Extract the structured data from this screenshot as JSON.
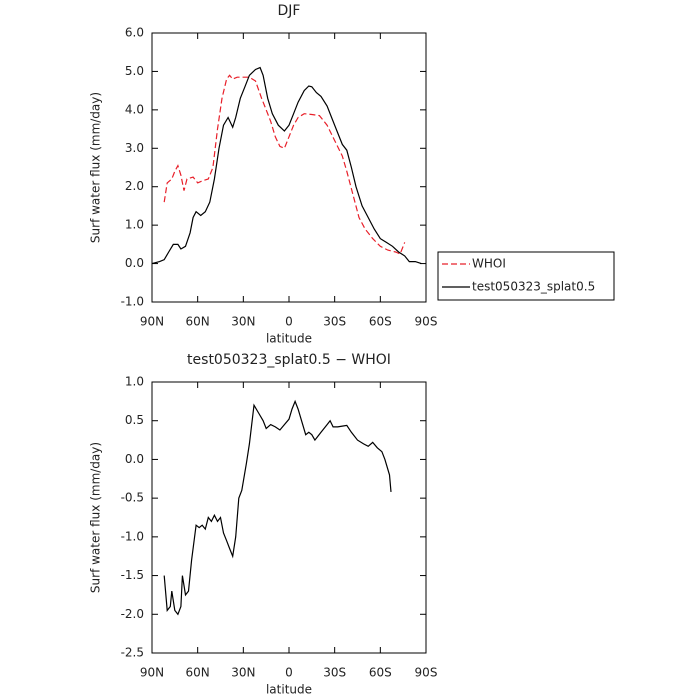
{
  "chart_data": [
    {
      "type": "line",
      "title": "DJF",
      "x_label": "latitude",
      "y_label": "Surf water flux (mm/day)",
      "xlim": [
        90,
        -90
      ],
      "xticks": [
        {
          "value": 90,
          "label": "90N"
        },
        {
          "value": 60,
          "label": "60N"
        },
        {
          "value": 30,
          "label": "30N"
        },
        0,
        {
          "value": -30,
          "label": "30S"
        },
        {
          "value": -60,
          "label": "60S"
        },
        {
          "value": -90,
          "label": "90S"
        }
      ],
      "ylim": [
        -1,
        6
      ],
      "yticks": [
        {
          "value": -1,
          "label": "-1.0"
        },
        {
          "value": 0,
          "label": "0.0"
        },
        {
          "value": 1,
          "label": "1.0"
        },
        {
          "value": 2,
          "label": "2.0"
        },
        {
          "value": 3,
          "label": "3.0"
        },
        {
          "value": 4,
          "label": "4.0"
        },
        {
          "value": 5,
          "label": "5.0"
        },
        {
          "value": 6,
          "label": "6.0"
        }
      ],
      "legend": "right",
      "series": [
        {
          "name": "WHOI",
          "color": "#e8202a",
          "dashed": true,
          "x": [
            82,
            80,
            77,
            75,
            73,
            71,
            69,
            67,
            63,
            60,
            57,
            53,
            50,
            47,
            44,
            41,
            39,
            37,
            34,
            30,
            26,
            22,
            18,
            15,
            12,
            9,
            6,
            3,
            0,
            -3,
            -6,
            -10,
            -15,
            -20,
            -25,
            -30,
            -35,
            -38,
            -42,
            -46,
            -50,
            -55,
            -60,
            -65,
            -70,
            -73,
            -76
          ],
          "values": [
            1.6,
            2.1,
            2.2,
            2.4,
            2.55,
            2.3,
            1.9,
            2.2,
            2.25,
            2.1,
            2.15,
            2.2,
            2.5,
            3.5,
            4.3,
            4.8,
            4.9,
            4.8,
            4.85,
            4.85,
            4.85,
            4.75,
            4.3,
            4.0,
            3.7,
            3.3,
            3.05,
            3.0,
            3.3,
            3.6,
            3.8,
            3.9,
            3.88,
            3.85,
            3.6,
            3.2,
            2.8,
            2.4,
            1.8,
            1.2,
            0.9,
            0.65,
            0.45,
            0.35,
            0.3,
            0.25,
            0.55
          ]
        },
        {
          "name": "test050323_splat0.5",
          "color": "#000000",
          "dashed": false,
          "x": [
            90,
            85,
            82,
            79,
            76,
            73,
            71,
            68,
            65,
            63,
            61,
            58,
            55,
            52,
            49,
            46,
            43,
            40,
            37,
            35,
            32,
            29,
            26,
            22,
            19,
            17,
            14,
            11,
            7,
            3,
            0,
            -3,
            -6,
            -10,
            -13,
            -15,
            -18,
            -21,
            -25,
            -28,
            -32,
            -35,
            -38,
            -41,
            -44,
            -48,
            -52,
            -56,
            -60,
            -64,
            -68,
            -72,
            -76,
            -79,
            -83,
            -87
          ],
          "values": [
            0.0,
            0.05,
            0.1,
            0.3,
            0.5,
            0.5,
            0.38,
            0.45,
            0.8,
            1.2,
            1.35,
            1.25,
            1.35,
            1.6,
            2.2,
            3.0,
            3.6,
            3.8,
            3.55,
            3.8,
            4.3,
            4.6,
            4.9,
            5.05,
            5.1,
            4.9,
            4.3,
            3.9,
            3.6,
            3.45,
            3.6,
            3.9,
            4.2,
            4.5,
            4.62,
            4.6,
            4.45,
            4.35,
            4.1,
            3.8,
            3.4,
            3.1,
            2.95,
            2.5,
            2.0,
            1.5,
            1.2,
            0.9,
            0.65,
            0.55,
            0.45,
            0.3,
            0.2,
            0.05,
            0.05,
            0.0
          ]
        }
      ]
    },
    {
      "type": "line",
      "title": "test050323_splat0.5 − WHOI",
      "x_label": "latitude",
      "y_label": "Surf water flux (mm/day)",
      "xlim": [
        90,
        -90
      ],
      "xticks": [
        {
          "value": 90,
          "label": "90N"
        },
        {
          "value": 60,
          "label": "60N"
        },
        {
          "value": 30,
          "label": "30N"
        },
        0,
        {
          "value": -30,
          "label": "30S"
        },
        {
          "value": -60,
          "label": "60S"
        },
        {
          "value": -90,
          "label": "90S"
        }
      ],
      "ylim": [
        -2.5,
        1
      ],
      "yticks": [
        {
          "value": -2.5,
          "label": "-2.5"
        },
        {
          "value": -2,
          "label": "-2.0"
        },
        {
          "value": -1.5,
          "label": "-1.5"
        },
        {
          "value": -1,
          "label": "-1.0"
        },
        {
          "value": -0.5,
          "label": "-0.5"
        },
        {
          "value": 0,
          "label": "0.0"
        },
        0.5,
        {
          "value": 1,
          "label": "1.0"
        }
      ],
      "series": [
        {
          "color": "#000000",
          "dashed": false,
          "x": [
            82,
            80,
            78,
            77,
            75,
            73,
            71,
            70,
            68,
            66,
            64,
            61,
            59,
            57,
            55,
            53,
            51,
            49,
            47,
            45,
            43,
            41,
            39,
            37,
            35,
            33,
            31,
            28,
            26,
            23,
            20,
            17,
            15,
            12,
            9,
            6,
            3,
            0,
            -2,
            -4,
            -6,
            -9,
            -11,
            -13,
            -15,
            -17,
            -19,
            -21,
            -23,
            -25,
            -27,
            -29,
            -32,
            -35,
            -38,
            -41,
            -45,
            -49,
            -52,
            -55,
            -58,
            -61,
            -63,
            -66,
            -67
          ],
          "values": [
            -1.5,
            -1.95,
            -1.9,
            -1.7,
            -1.95,
            -2.0,
            -1.9,
            -1.5,
            -1.75,
            -1.7,
            -1.3,
            -0.85,
            -0.88,
            -0.85,
            -0.9,
            -0.75,
            -0.8,
            -0.72,
            -0.8,
            -0.75,
            -0.95,
            -1.05,
            -1.15,
            -1.25,
            -1.0,
            -0.5,
            -0.4,
            -0.05,
            0.2,
            0.7,
            0.6,
            0.5,
            0.4,
            0.45,
            0.42,
            0.38,
            0.45,
            0.52,
            0.65,
            0.75,
            0.65,
            0.45,
            0.32,
            0.35,
            0.32,
            0.25,
            0.3,
            0.35,
            0.4,
            0.45,
            0.5,
            0.42,
            0.42,
            0.43,
            0.44,
            0.35,
            0.25,
            0.2,
            0.17,
            0.22,
            0.15,
            0.1,
            0.0,
            -0.2,
            -0.42
          ]
        }
      ]
    }
  ]
}
